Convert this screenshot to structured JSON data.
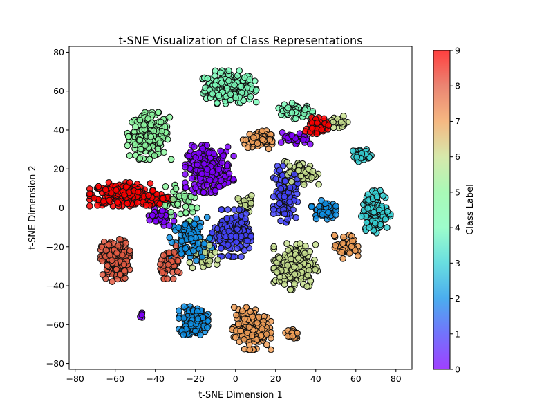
{
  "chart_data": {
    "type": "scatter",
    "title": "t-SNE Visualization of Class Representations",
    "xlabel": "t-SNE Dimension 1",
    "ylabel": "t-SNE Dimension 2",
    "xlim": [
      -83,
      88
    ],
    "ylim": [
      -83,
      83
    ],
    "xticks": [
      -80,
      -60,
      -40,
      -20,
      0,
      20,
      40,
      60,
      80
    ],
    "yticks": [
      -80,
      -60,
      -40,
      -20,
      0,
      20,
      40,
      60,
      80
    ],
    "grid": false,
    "marker": "circle, black edge",
    "colormap": "rainbow",
    "colorbar": {
      "label": "Class Label",
      "range": [
        0,
        9
      ],
      "ticks": [
        0,
        1,
        2,
        3,
        4,
        5,
        6,
        7,
        8,
        9
      ]
    },
    "class_colors": [
      "#8000ff",
      "#4444fb",
      "#0f92e8",
      "#36d2d6",
      "#7cfcba",
      "#8cf79f",
      "#c8e18f",
      "#f2a058",
      "#e45c43",
      "#ff0000"
    ],
    "clusters": [
      {
        "label": 4,
        "center": [
          -3,
          62
        ],
        "spread": [
          11,
          7
        ],
        "count": 230
      },
      {
        "label": 5,
        "center": [
          -43,
          37
        ],
        "spread": [
          9,
          10
        ],
        "count": 200
      },
      {
        "label": 9,
        "center": [
          -57,
          7
        ],
        "spread": [
          13,
          5
        ],
        "count": 230
      },
      {
        "label": 9,
        "center": [
          -39,
          4
        ],
        "spread": [
          6,
          3
        ],
        "count": 50
      },
      {
        "label": 8,
        "center": [
          -60,
          -27
        ],
        "spread": [
          6,
          9
        ],
        "count": 190
      },
      {
        "label": 0,
        "center": [
          -13,
          20
        ],
        "spread": [
          10,
          10
        ],
        "count": 230
      },
      {
        "label": 1,
        "center": [
          -2,
          -13
        ],
        "spread": [
          8,
          10
        ],
        "count": 220
      },
      {
        "label": 1,
        "center": [
          25,
          7
        ],
        "spread": [
          5,
          12
        ],
        "count": 130
      },
      {
        "label": 7,
        "center": [
          11,
          35
        ],
        "spread": [
          6,
          4
        ],
        "count": 70
      },
      {
        "label": 6,
        "center": [
          30,
          -30
        ],
        "spread": [
          9,
          10
        ],
        "count": 200
      },
      {
        "label": 6,
        "center": [
          33,
          18
        ],
        "spread": [
          7,
          5
        ],
        "count": 70
      },
      {
        "label": 2,
        "center": [
          -21,
          -58
        ],
        "spread": [
          6,
          6
        ],
        "count": 170
      },
      {
        "label": 2,
        "center": [
          -22,
          -17
        ],
        "spread": [
          9,
          10
        ],
        "count": 100
      },
      {
        "label": 7,
        "center": [
          8,
          -62
        ],
        "spread": [
          8,
          9
        ],
        "count": 190
      },
      {
        "label": 7,
        "center": [
          28,
          -65
        ],
        "spread": [
          3,
          2
        ],
        "count": 25
      },
      {
        "label": 7,
        "center": [
          55,
          -20
        ],
        "spread": [
          5,
          5
        ],
        "count": 55
      },
      {
        "label": 3,
        "center": [
          70,
          -2
        ],
        "spread": [
          6,
          9
        ],
        "count": 140
      },
      {
        "label": 3,
        "center": [
          63,
          27
        ],
        "spread": [
          4,
          3
        ],
        "count": 40
      },
      {
        "label": 2,
        "center": [
          44,
          -1
        ],
        "spread": [
          5,
          4
        ],
        "count": 55
      },
      {
        "label": 4,
        "center": [
          30,
          50
        ],
        "spread": [
          7,
          4
        ],
        "count": 55
      },
      {
        "label": 9,
        "center": [
          42,
          43
        ],
        "spread": [
          5,
          3
        ],
        "count": 35
      },
      {
        "label": 6,
        "center": [
          52,
          44
        ],
        "spread": [
          4,
          3
        ],
        "count": 20
      },
      {
        "label": 0,
        "center": [
          30,
          35
        ],
        "spread": [
          6,
          3
        ],
        "count": 35
      },
      {
        "label": 9,
        "center": [
          40,
          40
        ],
        "spread": [
          5,
          3
        ],
        "count": 20
      },
      {
        "label": 8,
        "center": [
          -32,
          -28
        ],
        "spread": [
          5,
          7
        ],
        "count": 55
      },
      {
        "label": 6,
        "center": [
          -15,
          -25
        ],
        "spread": [
          7,
          6
        ],
        "count": 45
      },
      {
        "label": 5,
        "center": [
          -28,
          2
        ],
        "spread": [
          10,
          8
        ],
        "count": 40
      },
      {
        "label": 0,
        "center": [
          -38,
          -5
        ],
        "spread": [
          6,
          5
        ],
        "count": 35
      },
      {
        "label": 6,
        "center": [
          5,
          2
        ],
        "spread": [
          4,
          4
        ],
        "count": 25
      },
      {
        "label": 0,
        "center": [
          -47,
          -55
        ],
        "spread": [
          1,
          1.5
        ],
        "count": 5
      }
    ]
  }
}
